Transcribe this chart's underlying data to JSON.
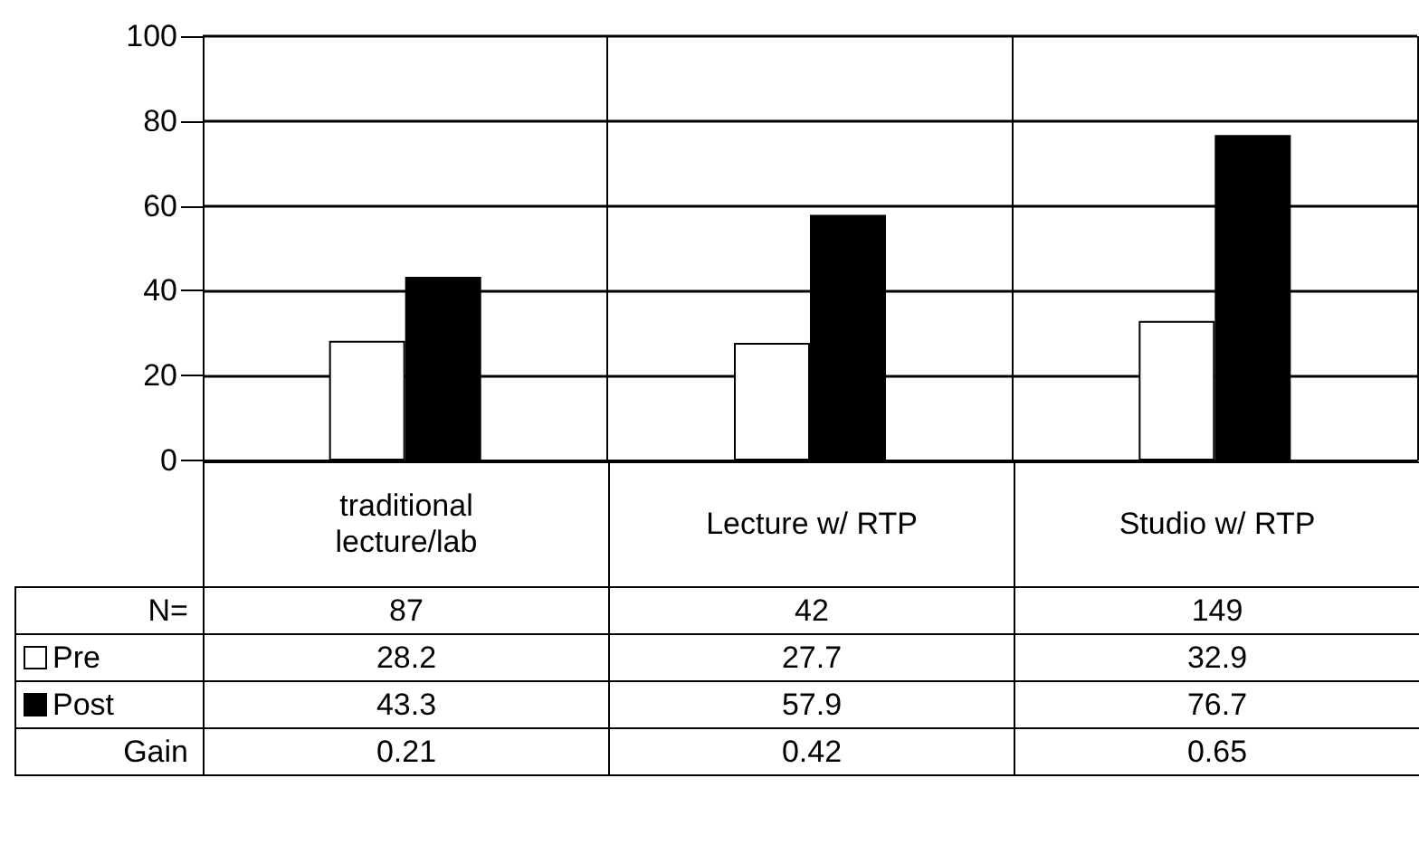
{
  "chart_data": {
    "type": "bar",
    "categories": [
      "traditional lecture/lab",
      "Lecture w/ RTP",
      "Studio w/ RTP"
    ],
    "series": [
      {
        "name": "Pre",
        "color": "#ffffff",
        "values": [
          28.2,
          27.7,
          32.9
        ]
      },
      {
        "name": "Post",
        "color": "#000000",
        "values": [
          43.3,
          57.9,
          76.7
        ]
      }
    ],
    "ylim": [
      0,
      100
    ],
    "yticks": [
      0,
      20,
      40,
      60,
      80,
      100
    ],
    "grid": "y",
    "legend": "bottom left",
    "data_labels": true,
    "annotations": [
      "N=",
      "87",
      "42",
      "149",
      "Gain",
      "0.21",
      "0.42",
      "0.65"
    ]
  }
}
